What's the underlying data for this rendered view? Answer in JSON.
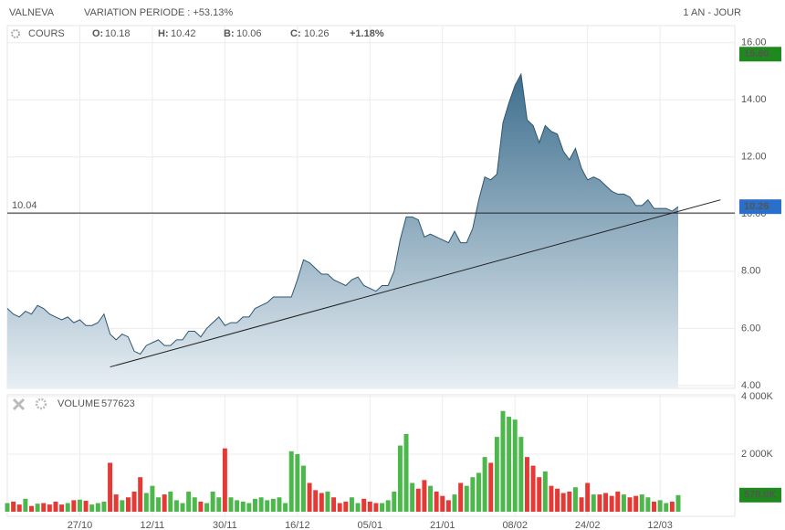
{
  "header": {
    "symbol": "VALNEVA",
    "variation": "VARIATION PERIODE : +53.13%",
    "period": "1 AN - JOUR"
  },
  "chart_data": [
    {
      "type": "area",
      "legend": {
        "title": "COURS",
        "items": [
          {
            "label": "O:",
            "value": "10.18"
          },
          {
            "label": "H:",
            "value": "10.42"
          },
          {
            "label": "B:",
            "value": "10.06"
          },
          {
            "label": "C:",
            "value": "10.26"
          }
        ],
        "change": "+1.18%"
      },
      "values": [
        6.7,
        6.5,
        6.4,
        6.6,
        6.5,
        6.8,
        6.7,
        6.5,
        6.4,
        6.3,
        6.4,
        6.2,
        6.3,
        6.1,
        6.1,
        6.2,
        6.5,
        5.8,
        5.6,
        5.8,
        5.7,
        5.2,
        5.1,
        5.4,
        5.5,
        5.6,
        5.4,
        5.4,
        5.6,
        5.6,
        5.9,
        5.9,
        5.7,
        6.0,
        6.2,
        6.4,
        6.1,
        6.2,
        6.2,
        6.4,
        6.4,
        6.7,
        6.8,
        6.9,
        7.1,
        7.1,
        7.1,
        7.1,
        7.7,
        8.4,
        8.3,
        8.1,
        7.9,
        7.9,
        7.7,
        7.6,
        7.5,
        7.7,
        7.8,
        7.5,
        7.4,
        7.3,
        7.5,
        7.5,
        8.0,
        9.1,
        9.9,
        9.9,
        9.8,
        9.2,
        9.3,
        9.2,
        9.1,
        9.0,
        9.4,
        9.0,
        9.0,
        9.5,
        10.5,
        11.3,
        11.2,
        11.4,
        13.2,
        13.9,
        14.5,
        14.9,
        13.3,
        13.1,
        12.5,
        13.1,
        12.9,
        12.8,
        12.2,
        11.9,
        12.3,
        11.6,
        11.2,
        11.3,
        11.2,
        11.0,
        10.8,
        10.7,
        10.7,
        10.6,
        10.3,
        10.3,
        10.5,
        10.2,
        10.2,
        10.2,
        10.1,
        10.26
      ],
      "color": "#2f5670",
      "ylim": [
        3.9,
        16.6
      ],
      "yticks": [
        {
          "value": 4,
          "label": "4.00"
        },
        {
          "value": 6,
          "label": "6.00"
        },
        {
          "value": 8,
          "label": "8.00"
        },
        {
          "value": 10,
          "label": "10.00"
        },
        {
          "value": 12,
          "label": "12.00"
        },
        {
          "value": 14,
          "label": "14.00"
        },
        {
          "value": 16,
          "label": "16.00"
        }
      ],
      "grid": true,
      "reference_line": 10.04,
      "trendline": [
        {
          "x": 17,
          "y": 4.65
        },
        {
          "x": 118,
          "y": 10.5
        }
      ],
      "markers": [
        {
          "value": 15.6,
          "label": "15.60",
          "color": "#1e8a1e"
        },
        {
          "value": 10.26,
          "label": "10.26",
          "color": "#2a6fc9"
        }
      ]
    },
    {
      "type": "bar",
      "legend": {
        "title": "VOLUME",
        "value": "577623"
      },
      "categories": [
        null,
        null,
        null,
        null,
        null,
        null,
        null,
        null,
        null,
        null,
        null,
        null,
        "27/10",
        null,
        null,
        null,
        null,
        null,
        null,
        null,
        null,
        null,
        null,
        null,
        "12/11",
        null,
        null,
        null,
        null,
        null,
        null,
        null,
        null,
        null,
        null,
        null,
        "30/11",
        null,
        null,
        null,
        null,
        null,
        null,
        null,
        null,
        null,
        null,
        null,
        "16/12",
        null,
        null,
        null,
        null,
        null,
        null,
        null,
        null,
        null,
        null,
        null,
        "05/01",
        null,
        null,
        null,
        null,
        null,
        null,
        null,
        null,
        null,
        null,
        null,
        "21/01",
        null,
        null,
        null,
        null,
        null,
        null,
        null,
        null,
        null,
        null,
        null,
        "08/02",
        null,
        null,
        null,
        null,
        null,
        null,
        null,
        null,
        null,
        null,
        null,
        "24/02",
        null,
        null,
        null,
        null,
        null,
        null,
        null,
        null,
        null,
        null,
        null,
        "12/03",
        null,
        null,
        null
      ],
      "values": [
        300,
        350,
        250,
        450,
        200,
        280,
        300,
        250,
        350,
        250,
        300,
        400,
        420,
        380,
        250,
        300,
        350,
        1700,
        600,
        400,
        500,
        700,
        1200,
        650,
        900,
        500,
        600,
        700,
        400,
        300,
        700,
        500,
        350,
        300,
        700,
        500,
        2200,
        500,
        400,
        350,
        300,
        450,
        500,
        400,
        450,
        500,
        300,
        2100,
        2000,
        1600,
        1000,
        750,
        650,
        700,
        500,
        300,
        350,
        500,
        300,
        450,
        350,
        300,
        300,
        400,
        700,
        2300,
        2700,
        1000,
        800,
        1100,
        900,
        700,
        550,
        400,
        600,
        1000,
        900,
        1200,
        1350,
        1900,
        1700,
        2600,
        3500,
        3300,
        3200,
        2600,
        1900,
        1600,
        1200,
        1400,
        900,
        800,
        650,
        700,
        850,
        500,
        1000,
        600,
        600,
        650,
        550,
        700,
        600,
        500,
        550,
        600,
        500,
        350,
        400,
        300,
        350,
        577.623
      ],
      "up_color": "#4cb84c",
      "down_color": "#e53935",
      "ylim": [
        0,
        4000
      ],
      "yticks": [
        {
          "value": 2000,
          "label": "2 000K"
        },
        {
          "value": 4000,
          "label": "4 000K"
        }
      ],
      "markers": [
        {
          "value": 577.623,
          "label": "578.0K",
          "color": "#1e8a1e"
        }
      ]
    }
  ]
}
